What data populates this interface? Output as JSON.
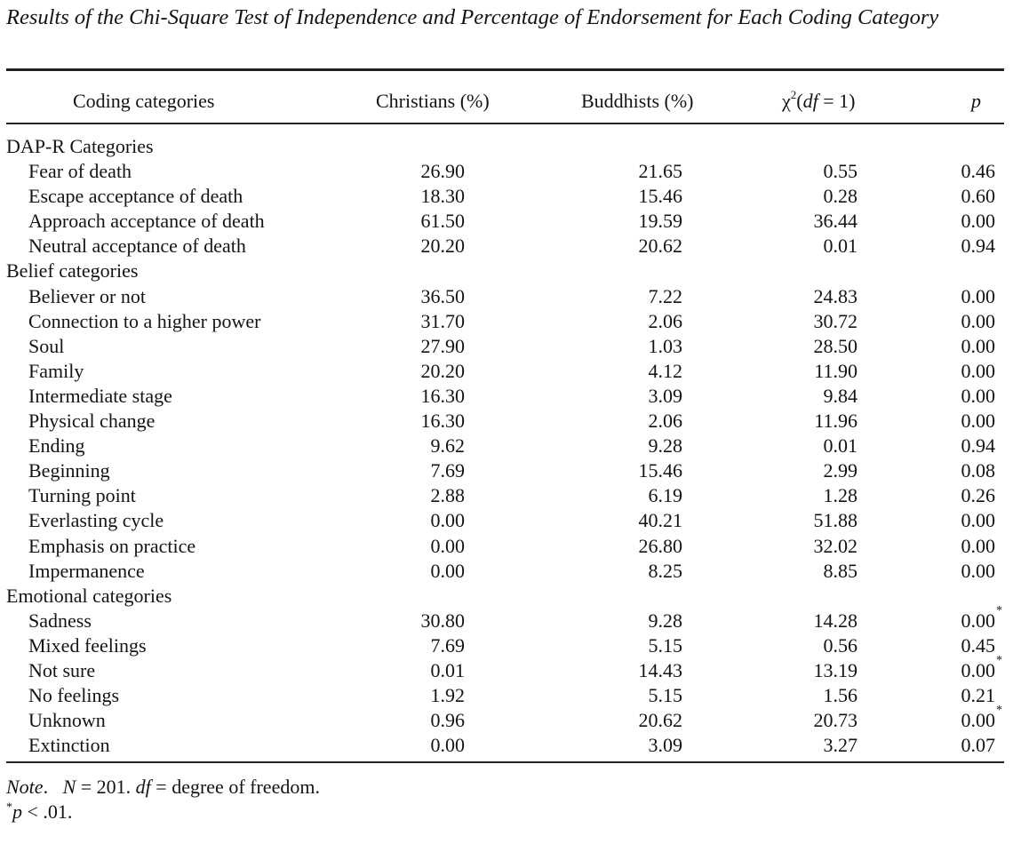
{
  "title": "Results of the Chi-Square Test of Independence and Percentage of Endorsement for Each Coding Category",
  "columns": {
    "coding": "Coding categories",
    "christians": "Christians (%)",
    "buddhists": "Buddhists (%)",
    "chi_symbol": "χ",
    "chi_sup": "2",
    "chi_open": "(",
    "chi_df": "df",
    "chi_rest": " = 1)",
    "p": "p"
  },
  "rows": [
    {
      "type": "section",
      "label": "DAP-R Categories"
    },
    {
      "label": "Fear of death",
      "christians": "26.90",
      "buddhists": "21.65",
      "chi2": "0.55",
      "p": "0.46",
      "star": ""
    },
    {
      "label": "Escape acceptance of death",
      "christians": "18.30",
      "buddhists": "15.46",
      "chi2": "0.28",
      "p": "0.60",
      "star": ""
    },
    {
      "label": "Approach acceptance of death",
      "christians": "61.50",
      "buddhists": "19.59",
      "chi2": "36.44",
      "p": "0.00",
      "star": ""
    },
    {
      "label": "Neutral acceptance of death",
      "christians": "20.20",
      "buddhists": "20.62",
      "chi2": "0.01",
      "p": "0.94",
      "star": ""
    },
    {
      "type": "section",
      "label": "Belief categories"
    },
    {
      "label": "Believer or not",
      "christians": "36.50",
      "buddhists": "7.22",
      "chi2": "24.83",
      "p": "0.00",
      "star": ""
    },
    {
      "label": "Connection to a higher power",
      "christians": "31.70",
      "buddhists": "2.06",
      "chi2": "30.72",
      "p": "0.00",
      "star": ""
    },
    {
      "label": "Soul",
      "christians": "27.90",
      "buddhists": "1.03",
      "chi2": "28.50",
      "p": "0.00",
      "star": ""
    },
    {
      "label": "Family",
      "christians": "20.20",
      "buddhists": "4.12",
      "chi2": "11.90",
      "p": "0.00",
      "star": ""
    },
    {
      "label": "Intermediate stage",
      "christians": "16.30",
      "buddhists": "3.09",
      "chi2": "9.84",
      "p": "0.00",
      "star": ""
    },
    {
      "label": "Physical change",
      "christians": "16.30",
      "buddhists": "2.06",
      "chi2": "11.96",
      "p": "0.00",
      "star": ""
    },
    {
      "label": "Ending",
      "christians": "9.62",
      "buddhists": "9.28",
      "chi2": "0.01",
      "p": "0.94",
      "star": ""
    },
    {
      "label": "Beginning",
      "christians": "7.69",
      "buddhists": "15.46",
      "chi2": "2.99",
      "p": "0.08",
      "star": ""
    },
    {
      "label": "Turning point",
      "christians": "2.88",
      "buddhists": "6.19",
      "chi2": "1.28",
      "p": "0.26",
      "star": ""
    },
    {
      "label": "Everlasting cycle",
      "christians": "0.00",
      "buddhists": "40.21",
      "chi2": "51.88",
      "p": "0.00",
      "star": ""
    },
    {
      "label": "Emphasis on practice",
      "christians": "0.00",
      "buddhists": "26.80",
      "chi2": "32.02",
      "p": "0.00",
      "star": ""
    },
    {
      "label": "Impermanence",
      "christians": "0.00",
      "buddhists": "8.25",
      "chi2": "8.85",
      "p": "0.00",
      "star": ""
    },
    {
      "type": "section",
      "label": "Emotional categories"
    },
    {
      "label": "Sadness",
      "christians": "30.80",
      "buddhists": "9.28",
      "chi2": "14.28",
      "p": "0.00",
      "star": "*"
    },
    {
      "label": "Mixed feelings",
      "christians": "7.69",
      "buddhists": "5.15",
      "chi2": "0.56",
      "p": "0.45",
      "star": ""
    },
    {
      "label": "Not sure",
      "christians": "0.01",
      "buddhists": "14.43",
      "chi2": "13.19",
      "p": "0.00",
      "star": "*"
    },
    {
      "label": "No feelings",
      "christians": "1.92",
      "buddhists": "5.15",
      "chi2": "1.56",
      "p": "0.21",
      "star": ""
    },
    {
      "label": "Unknown",
      "christians": "0.96",
      "buddhists": "20.62",
      "chi2": "20.73",
      "p": "0.00",
      "star": "*"
    },
    {
      "label": "Extinction",
      "christians": "0.00",
      "buddhists": "3.09",
      "chi2": "3.27",
      "p": "0.07",
      "star": ""
    }
  ],
  "note": {
    "label": "Note",
    "period": ".",
    "n_var": "N",
    "n_text": " = 201. ",
    "df_var": "df",
    "df_text": " = degree of freedom.",
    "star": "*",
    "p_var": "p",
    "p_text": " < .01."
  }
}
